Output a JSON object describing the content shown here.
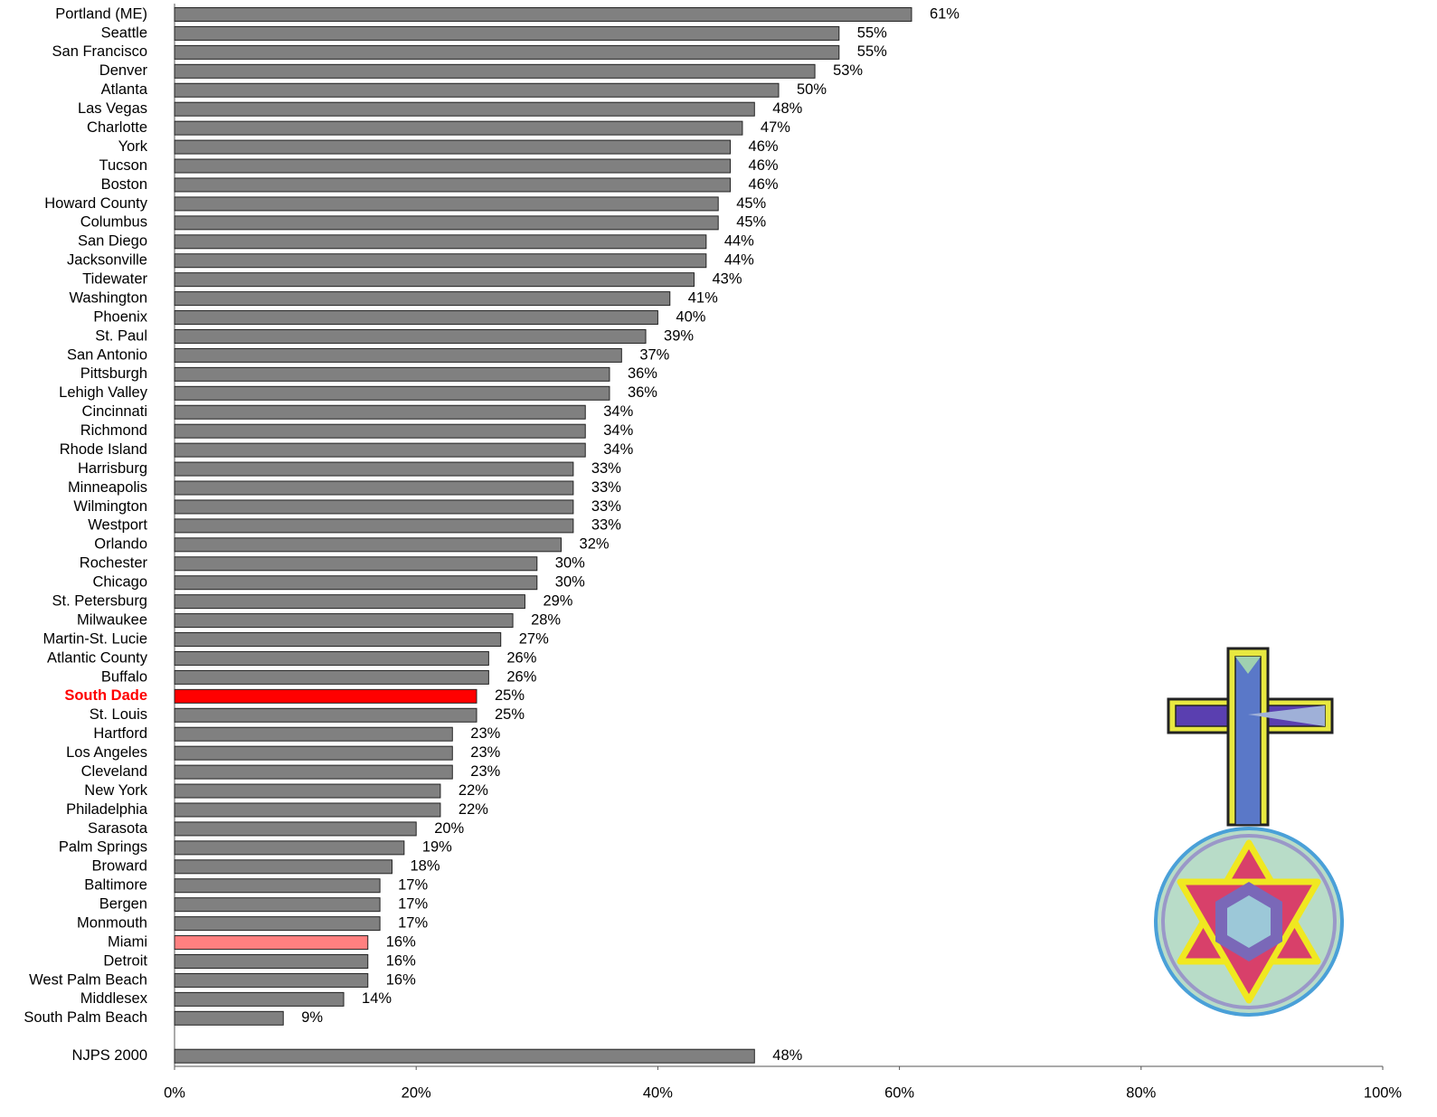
{
  "chart_data": {
    "type": "hbar",
    "categories": [
      "Portland (ME)",
      "Seattle",
      "San Francisco",
      "Denver",
      "Atlanta",
      "Las Vegas",
      "Charlotte",
      "York",
      "Tucson",
      "Boston",
      "Howard County",
      "Columbus",
      "San Diego",
      "Jacksonville",
      "Tidewater",
      "Washington",
      "Phoenix",
      "St. Paul",
      "San Antonio",
      "Pittsburgh",
      "Lehigh Valley",
      "Cincinnati",
      "Richmond",
      "Rhode Island",
      "Harrisburg",
      "Minneapolis",
      "Wilmington",
      "Westport",
      "Orlando",
      "Rochester",
      "Chicago",
      "St. Petersburg",
      "Milwaukee",
      "Martin-St. Lucie",
      "Atlantic County",
      "Buffalo",
      "South Dade",
      "St. Louis",
      "Hartford",
      "Los Angeles",
      "Cleveland",
      "New York",
      "Philadelphia",
      "Sarasota",
      "Palm Springs",
      "Broward",
      "Baltimore",
      "Bergen",
      "Monmouth",
      "Miami",
      "Detroit",
      "West Palm Beach",
      "Middlesex",
      "South Palm Beach",
      null,
      "NJPS 2000"
    ],
    "values": [
      61,
      55,
      55,
      53,
      50,
      48,
      47,
      46,
      46,
      46,
      45,
      45,
      44,
      44,
      43,
      41,
      40,
      39,
      37,
      36,
      36,
      34,
      34,
      34,
      33,
      33,
      33,
      33,
      32,
      30,
      30,
      29,
      28,
      27,
      26,
      26,
      25,
      25,
      23,
      23,
      23,
      22,
      22,
      20,
      19,
      18,
      17,
      17,
      17,
      16,
      16,
      16,
      14,
      9,
      null,
      48
    ],
    "value_labels": [
      "61%",
      "55%",
      "55%",
      "53%",
      "50%",
      "48%",
      "47%",
      "46%",
      "46%",
      "46%",
      "45%",
      "45%",
      "44%",
      "44%",
      "43%",
      "41%",
      "40%",
      "39%",
      "37%",
      "36%",
      "36%",
      "34%",
      "34%",
      "34%",
      "33%",
      "33%",
      "33%",
      "33%",
      "32%",
      "30%",
      "30%",
      "29%",
      "28%",
      "27%",
      "26%",
      "26%",
      "25%",
      "25%",
      "23%",
      "23%",
      "23%",
      "22%",
      "22%",
      "20%",
      "19%",
      "18%",
      "17%",
      "17%",
      "17%",
      "16%",
      "16%",
      "16%",
      "14%",
      "9%",
      null,
      "48%"
    ],
    "color": "#808080",
    "highlight_color": "#ff0000",
    "colors": {
      "36": "#ff0000",
      "49": "#ff8080"
    },
    "xlim": [
      0,
      100
    ],
    "xticks": [
      {
        "value": 0,
        "label": "0%"
      },
      {
        "value": 20,
        "label": "20%"
      },
      {
        "value": 40,
        "label": "40%"
      },
      {
        "value": 60,
        "label": "60%"
      },
      {
        "value": 80,
        "label": "80%"
      },
      {
        "value": 100,
        "label": "100%"
      }
    ],
    "grid": false
  }
}
